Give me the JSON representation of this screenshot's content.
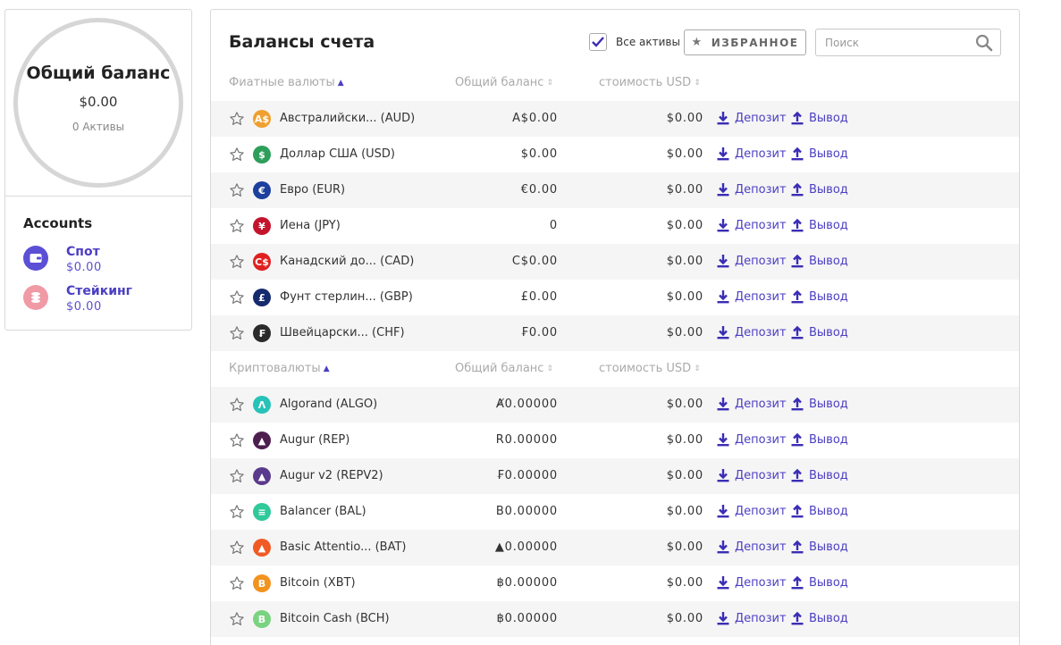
{
  "summary": {
    "title": "Общий баланс",
    "value": "$0.00",
    "assets_count": "0 Активы"
  },
  "accounts": {
    "title": "Accounts",
    "items": [
      {
        "name": "Спот",
        "value": "$0.00",
        "icon": "wallet-icon",
        "color": "#5b4fd6"
      },
      {
        "name": "Стейкинг",
        "value": "$0.00",
        "icon": "coins-stack-icon",
        "color": "#f09aa6"
      }
    ]
  },
  "main": {
    "title": "Балансы счета",
    "all_assets_label": "Все активы",
    "all_assets_checked": true,
    "favorites_label": "ИЗБРАННОЕ",
    "search_placeholder": "Поиск"
  },
  "colors": {
    "accent": "#4b3ec2",
    "row_shade": "#f5f5f5"
  },
  "sections": [
    {
      "header": {
        "col1": "Фиатные валюты",
        "col2": "Общий баланс",
        "col3": "стоимость USD"
      },
      "rows": [
        {
          "name": "Австралийски... (AUD)",
          "balance": "A$0.00",
          "usd": "$0.00",
          "icon": "aud-icon",
          "glyph": "A$",
          "color": "#f0a030"
        },
        {
          "name": "Доллар США (USD)",
          "balance": "$0.00",
          "usd": "$0.00",
          "icon": "usd-icon",
          "glyph": "$",
          "color": "#2e9e5b"
        },
        {
          "name": "Евро (EUR)",
          "balance": "€0.00",
          "usd": "$0.00",
          "icon": "eur-icon",
          "glyph": "€",
          "color": "#1d3f9e"
        },
        {
          "name": "Иена (JPY)",
          "balance": "0",
          "usd": "$0.00",
          "icon": "jpy-icon",
          "glyph": "¥",
          "color": "#c4142c"
        },
        {
          "name": "Канадский до...   (CAD)",
          "balance": "C$0.00",
          "usd": "$0.00",
          "icon": "cad-icon",
          "glyph": "C$",
          "color": "#e02020"
        },
        {
          "name": "Фунт стерлин...   (GBP)",
          "balance": "£0.00",
          "usd": "$0.00",
          "icon": "gbp-icon",
          "glyph": "£",
          "color": "#162a6e"
        },
        {
          "name": "Швейцарски...    (CHF)",
          "balance": "₣0.00",
          "usd": "$0.00",
          "icon": "chf-icon",
          "glyph": "₣",
          "color": "#2b2b2b"
        }
      ]
    },
    {
      "header": {
        "col1": "Криптовалюты",
        "col2": "Общий баланс",
        "col3": "стоимость USD"
      },
      "rows": [
        {
          "name": "Algorand (ALGO)",
          "balance": "Ⱥ0.00000",
          "usd": "$0.00",
          "icon": "algo-icon",
          "glyph": "Λ",
          "color": "#27c2b8"
        },
        {
          "name": "Augur (REP)",
          "balance": "R0.00000",
          "usd": "$0.00",
          "icon": "rep-icon",
          "glyph": "▲",
          "color": "#4d1f4f"
        },
        {
          "name": "Augur v2 (REPV2)",
          "balance": "₣0.00000",
          "usd": "$0.00",
          "icon": "repv2-icon",
          "glyph": "▲",
          "color": "#5a3a8c"
        },
        {
          "name": "Balancer (BAL)",
          "balance": "B0.00000",
          "usd": "$0.00",
          "icon": "bal-icon",
          "glyph": "≡",
          "color": "#2fc99a"
        },
        {
          "name": "Basic Attentio...   (BAT)",
          "balance": "▲0.00000",
          "usd": "$0.00",
          "icon": "bat-icon",
          "glyph": "▲",
          "color": "#f05a24"
        },
        {
          "name": "Bitcoin (XBT)",
          "balance": "฿0.00000",
          "usd": "$0.00",
          "icon": "xbt-icon",
          "glyph": "B",
          "color": "#f2931e"
        },
        {
          "name": "Bitcoin Cash (BCH)",
          "balance": "฿0.00000",
          "usd": "$0.00",
          "icon": "bch-icon",
          "glyph": "B",
          "color": "#7ad380"
        }
      ]
    }
  ],
  "actions": {
    "deposit": "Депозит",
    "withdraw": "Вывод"
  }
}
